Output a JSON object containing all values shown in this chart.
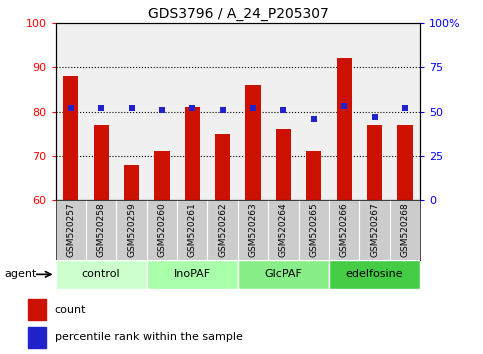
{
  "title": "GDS3796 / A_24_P205307",
  "samples": [
    "GSM520257",
    "GSM520258",
    "GSM520259",
    "GSM520260",
    "GSM520261",
    "GSM520262",
    "GSM520263",
    "GSM520264",
    "GSM520265",
    "GSM520266",
    "GSM520267",
    "GSM520268"
  ],
  "count_values": [
    88,
    77,
    68,
    71,
    81,
    75,
    86,
    76,
    71,
    92,
    77,
    77
  ],
  "percentile_values": [
    52,
    52,
    52,
    51,
    52,
    51,
    52,
    51,
    46,
    53,
    47,
    52
  ],
  "ylim_left": [
    60,
    100
  ],
  "ylim_right": [
    0,
    100
  ],
  "yticks_left": [
    60,
    70,
    80,
    90,
    100
  ],
  "yticks_right": [
    0,
    25,
    50,
    75,
    100
  ],
  "ytick_labels_right": [
    "0",
    "25",
    "50",
    "75",
    "100%"
  ],
  "groups": [
    {
      "label": "control",
      "start": 0,
      "end": 3,
      "color": "#ccffcc"
    },
    {
      "label": "InoPAF",
      "start": 3,
      "end": 6,
      "color": "#aaffaa"
    },
    {
      "label": "GlcPAF",
      "start": 6,
      "end": 9,
      "color": "#88ee88"
    },
    {
      "label": "edelfosine",
      "start": 9,
      "end": 12,
      "color": "#44cc44"
    }
  ],
  "bar_color": "#cc1100",
  "dot_color": "#2222cc",
  "agent_label": "agent",
  "legend_count": "count",
  "legend_percentile": "percentile rank within the sample",
  "background_plot": "#f0f0f0",
  "background_sample": "#cccccc"
}
